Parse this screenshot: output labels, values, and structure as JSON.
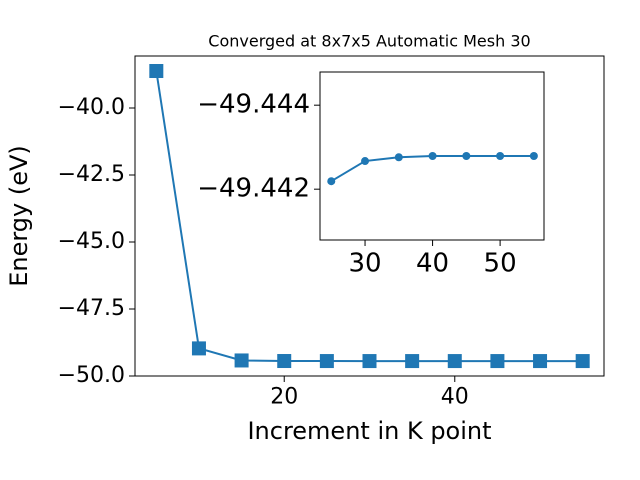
{
  "chart_data": [
    {
      "type": "line",
      "title": "Converged at 8x7x5 Automatic Mesh 30",
      "x_label": "Increment in K point",
      "y_label": "Energy (eV)",
      "x": [
        5,
        10,
        15,
        20,
        25,
        30,
        35,
        40,
        45,
        50,
        55
      ],
      "series": [
        {
          "color": "#1f77b4",
          "marker": "square",
          "values": [
            -38.62,
            -48.97,
            -49.42,
            -49.441,
            -49.4422,
            -49.4427,
            -49.4428,
            -49.4428,
            -49.4428,
            -49.4428,
            -49.4428
          ]
        }
      ],
      "xlim": [
        2.5,
        57.5
      ],
      "xticks": [
        20,
        40
      ],
      "ylim": [
        -50,
        -38.06
      ],
      "yticks": [
        {
          "value": -50,
          "label": "−50.0"
        },
        {
          "value": -47.5,
          "label": "−47.5"
        },
        {
          "value": -45,
          "label": "−45.0"
        },
        {
          "value": -42.5,
          "label": "−42.5"
        },
        {
          "value": -40,
          "label": "−40.0"
        }
      ]
    },
    {
      "type": "line",
      "x": [
        25,
        30,
        35,
        40,
        45,
        50,
        55
      ],
      "series": [
        {
          "color": "#1f77b4",
          "marker": "circle",
          "values": [
            -49.44219,
            -49.44267,
            -49.44276,
            -49.44279,
            -49.44279,
            -49.44279,
            -49.44279
          ]
        }
      ],
      "xlim": [
        23.33,
        56.5
      ],
      "xticks": [
        30,
        40,
        50
      ],
      "ylim": [
        -49.44079,
        -49.44479
      ],
      "yticks": [
        {
          "value": -49.442,
          "label": "−49.442"
        },
        {
          "value": -49.444,
          "label": "−49.444"
        }
      ]
    }
  ]
}
